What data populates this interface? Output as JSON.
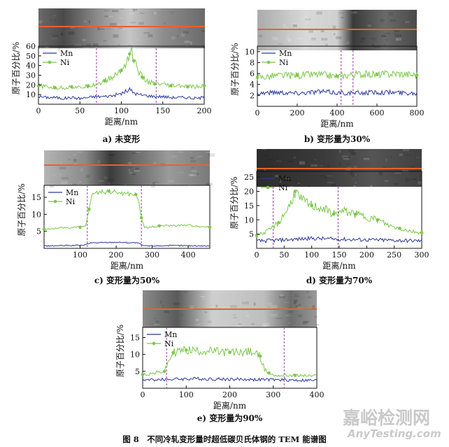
{
  "figure": {
    "caption": "图 8　不同冷轧变形量时超低碳贝氏体钢的 TEM 能谱图",
    "watermark": {
      "cn": "嘉峪检测网",
      "en": "AnyTesting.com"
    },
    "colors": {
      "Mn": "#2b3a9c",
      "Ni": "#7cc84a",
      "scan_line": "#e8622a",
      "marker": "#9b3aa8"
    }
  },
  "chart_data": [
    {
      "id": "a",
      "type": "line",
      "caption": "a) 未变形",
      "xlabel": "距离/nm",
      "ylabel": "原子百分比/%",
      "xlim": [
        0,
        200
      ],
      "ylim": [
        0,
        60
      ],
      "xticks": [
        0,
        50,
        100,
        150,
        200
      ],
      "yticks": [
        10,
        20,
        30,
        40,
        50,
        60
      ],
      "markers": [
        70,
        142
      ],
      "legend": "top-left",
      "legend_names": [
        "Mn",
        "Ni"
      ],
      "series": [
        {
          "name": "Mn",
          "x": [
            0,
            10,
            20,
            30,
            40,
            50,
            60,
            70,
            80,
            90,
            100,
            105,
            110,
            115,
            120,
            130,
            140,
            150,
            160,
            170,
            180,
            190,
            200
          ],
          "y": [
            8,
            7,
            7,
            6,
            7,
            6,
            7,
            8,
            8,
            9,
            11,
            13,
            15,
            12,
            10,
            9,
            8,
            8,
            7,
            7,
            7,
            6,
            7
          ]
        },
        {
          "name": "Ni",
          "x": [
            0,
            10,
            20,
            30,
            40,
            50,
            60,
            70,
            80,
            90,
            100,
            105,
            110,
            112,
            115,
            120,
            125,
            130,
            140,
            150,
            160,
            170,
            180,
            190,
            200
          ],
          "y": [
            19,
            18,
            17,
            17,
            18,
            17,
            19,
            21,
            24,
            28,
            35,
            42,
            52,
            57,
            45,
            36,
            28,
            24,
            21,
            20,
            19,
            19,
            18,
            18,
            19
          ]
        }
      ]
    },
    {
      "id": "b",
      "type": "line",
      "caption": "b) 变形量为30%",
      "xlabel": "距离/nm",
      "ylabel": "原子百分比/%",
      "xlim": [
        0,
        800
      ],
      "ylim": [
        0,
        11
      ],
      "xticks": [
        0,
        200,
        400,
        600,
        800
      ],
      "yticks": [
        2,
        4,
        6,
        8,
        10
      ],
      "markers": [
        420,
        480
      ],
      "legend": "top-left",
      "legend_names": [
        "Mn",
        "Ni"
      ],
      "series": [
        {
          "name": "Mn",
          "x": [
            0,
            100,
            200,
            300,
            400,
            500,
            600,
            700,
            800
          ],
          "y": [
            2.4,
            2.6,
            2.4,
            2.7,
            2.5,
            2.4,
            2.6,
            2.5,
            2.4
          ]
        },
        {
          "name": "Ni",
          "x": [
            0,
            100,
            200,
            300,
            400,
            500,
            600,
            700,
            800
          ],
          "y": [
            5.3,
            5.6,
            5.7,
            5.8,
            5.5,
            5.9,
            5.8,
            6.0,
            5.7
          ]
        }
      ]
    },
    {
      "id": "c",
      "type": "line",
      "caption": "c) 变形量为50%",
      "xlabel": "距离/nm",
      "ylabel": "原子百分比/%",
      "xlim": [
        0,
        460
      ],
      "ylim": [
        0,
        18.5
      ],
      "xticks": [
        100,
        200,
        300,
        400
      ],
      "yticks": [
        5,
        10,
        15
      ],
      "markers": [
        120,
        270
      ],
      "legend": "top-left",
      "legend_names": [
        "Mn",
        "Ni"
      ],
      "series": [
        {
          "name": "Mn",
          "x": [
            0,
            60,
            110,
            120,
            130,
            200,
            260,
            270,
            280,
            350,
            460
          ],
          "y": [
            0.7,
            0.8,
            0.9,
            1.3,
            1.6,
            1.8,
            1.6,
            1.0,
            0.7,
            0.8,
            0.7
          ]
        },
        {
          "name": "Ni",
          "x": [
            0,
            50,
            100,
            115,
            125,
            135,
            180,
            220,
            255,
            262,
            270,
            280,
            320,
            400,
            460
          ],
          "y": [
            5.6,
            6.0,
            6.2,
            6.5,
            11.5,
            16.3,
            16.8,
            16.1,
            15.8,
            14,
            9,
            6.0,
            6.6,
            6.8,
            6.2
          ]
        }
      ]
    },
    {
      "id": "d",
      "type": "line",
      "caption": "d) 变形量为70%",
      "xlabel": "距离/nm",
      "ylabel": "原子百分比/%",
      "xlim": [
        0,
        300
      ],
      "ylim": [
        0,
        27
      ],
      "xticks": [
        0,
        50,
        100,
        150,
        200,
        250,
        300
      ],
      "yticks": [
        5,
        10,
        15,
        20,
        25
      ],
      "markers": [
        30,
        148
      ],
      "legend": "top-left",
      "legend_names": [
        "Mn",
        "Ni"
      ],
      "series": [
        {
          "name": "Mn",
          "x": [
            0,
            50,
            100,
            150,
            200,
            250,
            300
          ],
          "y": [
            2.5,
            3.0,
            3.5,
            3.2,
            3.0,
            2.8,
            2.6
          ]
        },
        {
          "name": "Ni",
          "x": [
            0,
            20,
            40,
            60,
            70,
            80,
            100,
            120,
            140,
            160,
            180,
            200,
            220,
            240,
            260,
            280,
            300
          ],
          "y": [
            4.5,
            6,
            9,
            15,
            20,
            17,
            15,
            14,
            12,
            13,
            12,
            11,
            10,
            8,
            7,
            6,
            5.5
          ]
        }
      ]
    },
    {
      "id": "e",
      "type": "line",
      "caption": "e) 变形量为90%",
      "xlabel": "距离/nm",
      "ylabel": "原子百分比/%",
      "xlim": [
        0,
        400
      ],
      "ylim": [
        0,
        18
      ],
      "xticks": [
        0,
        100,
        200,
        300,
        400
      ],
      "yticks": [
        5,
        10,
        15
      ],
      "markers": [
        55,
        325
      ],
      "legend": "top-left",
      "legend_names": [
        "Mn",
        "Ni"
      ],
      "series": [
        {
          "name": "Mn",
          "x": [
            0,
            100,
            200,
            300,
            400
          ],
          "y": [
            2.4,
            2.8,
            2.7,
            2.5,
            2.3
          ]
        },
        {
          "name": "Ni",
          "x": [
            0,
            30,
            50,
            60,
            70,
            80,
            100,
            150,
            200,
            250,
            270,
            280,
            290,
            300,
            350,
            400
          ],
          "y": [
            4,
            4.5,
            5,
            8,
            10.5,
            11,
            11.3,
            11,
            10.6,
            10.8,
            9.5,
            5.5,
            4.5,
            3.8,
            3.8,
            3.6
          ]
        }
      ]
    }
  ]
}
